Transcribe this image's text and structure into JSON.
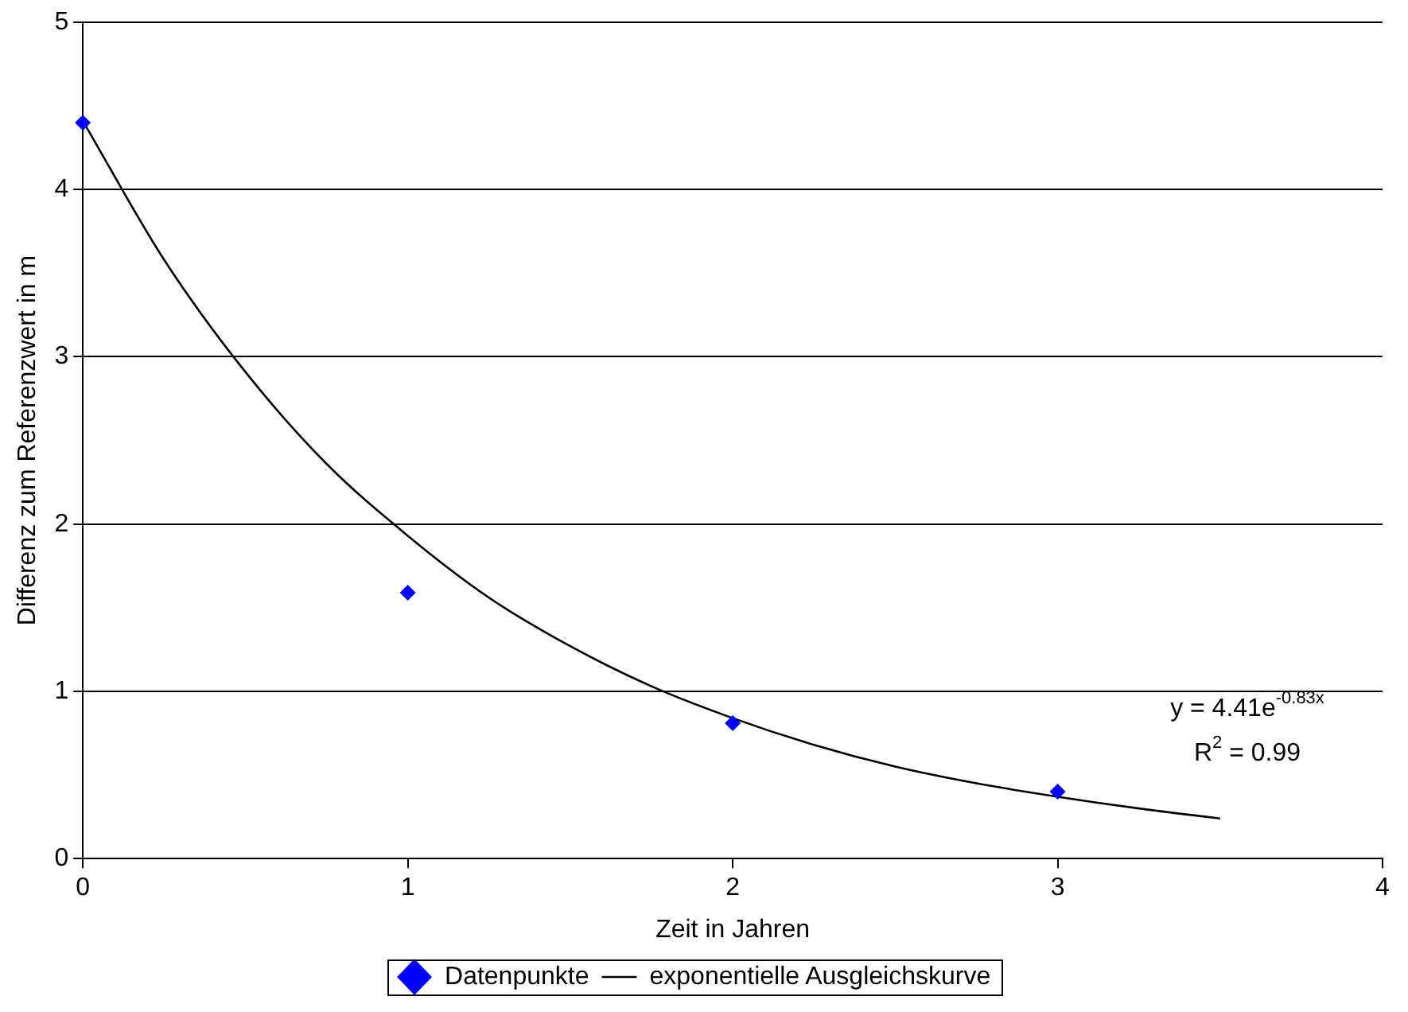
{
  "chart_data": {
    "type": "scatter",
    "xlabel": "Zeit in Jahren",
    "ylabel": "Differenz zum Referenzwert in m",
    "xlim": [
      0,
      4
    ],
    "xticks": [
      0,
      1,
      2,
      3,
      4
    ],
    "ylim": [
      0,
      5
    ],
    "yticks": [
      0,
      1,
      2,
      3,
      4,
      5
    ],
    "grid": "y",
    "legend": "bottom",
    "marker": "diamond",
    "series": [
      {
        "name": "Datenpunkte",
        "color": "#0000ff",
        "x": [
          0,
          1,
          2,
          3
        ],
        "values": [
          4.4,
          1.59,
          0.81,
          0.4
        ]
      },
      {
        "name": "exponentielle Ausgleichskurve",
        "type": "line",
        "color": "#000000",
        "marker": "none",
        "line_style": "solid",
        "x": [
          0,
          0.25,
          0.5,
          0.75,
          1,
          1.25,
          1.5,
          1.75,
          2,
          2.25,
          2.5,
          2.75,
          3,
          3.25,
          3.5
        ],
        "values": [
          4.41,
          3.58,
          2.91,
          2.36,
          1.93,
          1.56,
          1.27,
          1.03,
          0.84,
          0.68,
          0.55,
          0.45,
          0.37,
          0.3,
          0.24
        ]
      }
    ],
    "annotations": [
      "y = 4.41e$^{-0.83x}$",
      "R$^{2}$ = 0.99"
    ]
  }
}
